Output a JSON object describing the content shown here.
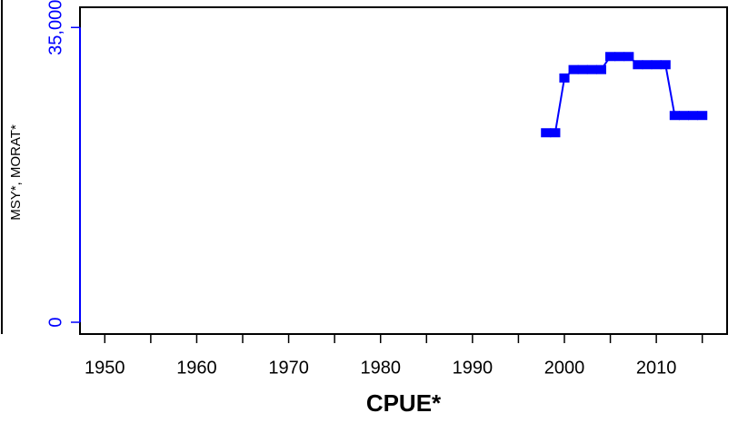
{
  "chart_data": {
    "type": "line",
    "xlabel": "CPUE*",
    "ylabel": "MSY*, MORAT*",
    "x": [
      1998,
      1999,
      2000,
      2001,
      2002,
      2003,
      2004,
      2005,
      2006,
      2007,
      2008,
      2009,
      2010,
      2011,
      2012,
      2013,
      2014,
      2015
    ],
    "series": [
      {
        "color": "#0000ff",
        "values": [
          22500,
          22500,
          29000,
          30000,
          30000,
          30000,
          30000,
          31550,
          31550,
          31550,
          30580,
          30580,
          30580,
          30580,
          24550,
          24550,
          24550,
          24550
        ]
      }
    ],
    "xlim": [
      1947.3,
      2017.7
    ],
    "ylim": [
      -1400,
      37400
    ],
    "xticks": [
      1950,
      1960,
      1970,
      1980,
      1990,
      2000,
      2010
    ],
    "xminorticks": [
      1955,
      1965,
      1975,
      1985,
      1995,
      2005,
      2015
    ],
    "yticks": [
      0,
      {
        "value": 35000,
        "label": "35,000"
      }
    ],
    "yaxis_color": "#0000ff"
  }
}
